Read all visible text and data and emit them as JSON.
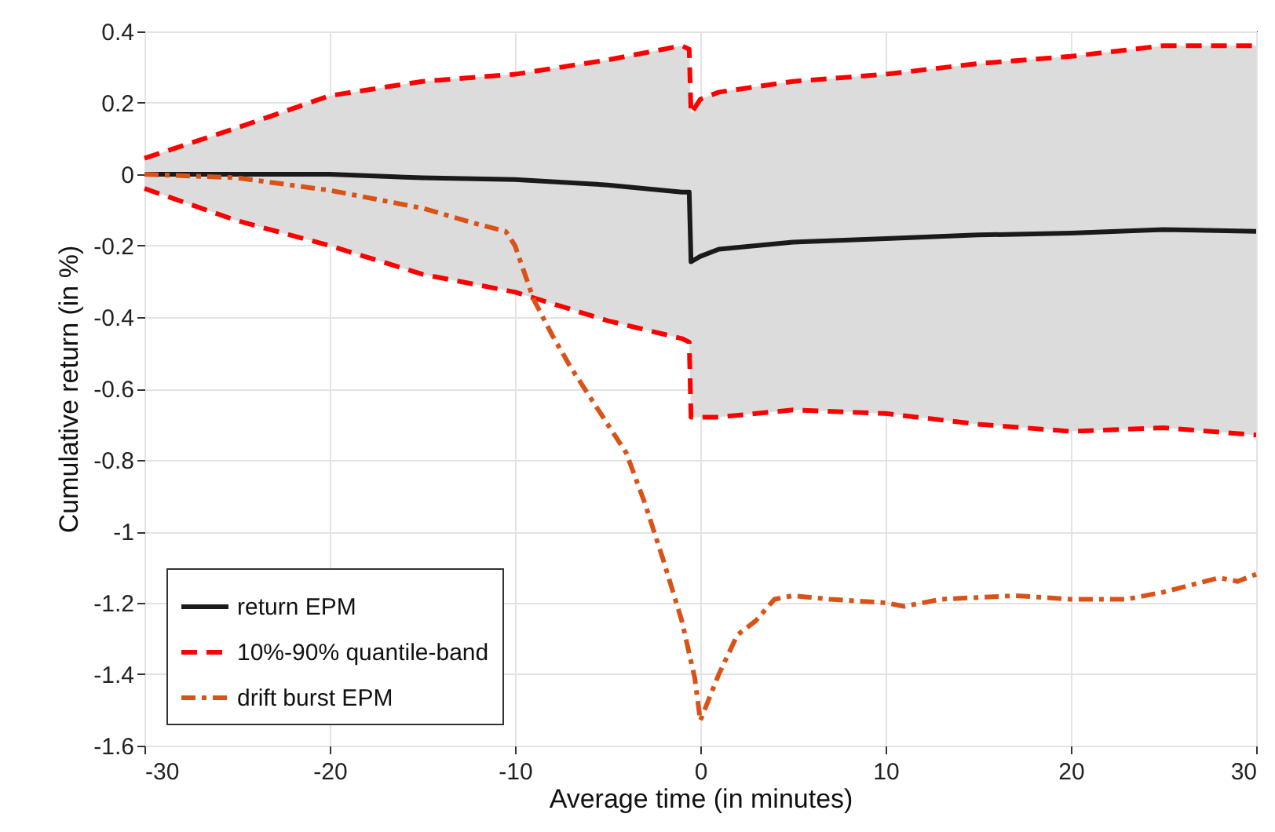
{
  "chart_data": {
    "type": "line",
    "xlabel": "Average time (in minutes)",
    "ylabel": "Cumulative return (in %)",
    "xlim": [
      -30,
      30
    ],
    "xticks": [
      -30,
      -20,
      -10,
      0,
      10,
      20,
      30
    ],
    "ylim": [
      -1.6,
      0.4
    ],
    "yticks": [
      -1.6,
      -1.4,
      -1.2,
      -1,
      -0.8,
      -0.6,
      -0.4,
      -0.2,
      0,
      0.2,
      0.4
    ],
    "grid": true,
    "legend": "bottom left",
    "series": [
      {
        "name": "return EPM",
        "color": "#1a1a1a",
        "line_style": "solid",
        "x": [
          -30,
          -25,
          -20,
          -15,
          -10,
          -5,
          -1,
          -0.6,
          -0.5,
          0,
          1,
          5,
          10,
          15,
          20,
          25,
          30
        ],
        "values": [
          0,
          0,
          0,
          -0.01,
          -0.015,
          -0.03,
          -0.05,
          -0.05,
          -0.245,
          -0.23,
          -0.21,
          -0.19,
          -0.18,
          -0.17,
          -0.165,
          -0.155,
          -0.16
        ],
        "lower": [
          -0.04,
          -0.13,
          -0.2,
          -0.28,
          -0.33,
          -0.41,
          -0.46,
          -0.47,
          -0.68,
          -0.68,
          -0.68,
          -0.66,
          -0.67,
          -0.7,
          -0.72,
          -0.71,
          -0.73
        ],
        "upper": [
          0.045,
          0.13,
          0.22,
          0.26,
          0.28,
          0.32,
          0.36,
          0.35,
          0.17,
          0.21,
          0.23,
          0.26,
          0.28,
          0.31,
          0.33,
          0.36,
          0.36
        ]
      },
      {
        "name": "10%-90% quantile-band",
        "color": "#ff0000",
        "line_style": "dashed",
        "x": [
          -30,
          -25,
          -20,
          -15,
          -10,
          -5,
          -1,
          -0.6,
          -0.5,
          0,
          1,
          5,
          10,
          15,
          20,
          25,
          30
        ],
        "values": [
          0.045,
          0.13,
          0.22,
          0.26,
          0.28,
          0.32,
          0.36,
          0.35,
          0.17,
          0.21,
          0.23,
          0.26,
          0.28,
          0.31,
          0.33,
          0.36,
          0.36
        ]
      },
      {
        "color": "#ff0000",
        "line_style": "dashed",
        "x": [
          -30,
          -25,
          -20,
          -15,
          -10,
          -5,
          -1,
          -0.6,
          -0.5,
          0,
          1,
          5,
          10,
          15,
          20,
          25,
          30
        ],
        "values": [
          -0.04,
          -0.13,
          -0.2,
          -0.28,
          -0.33,
          -0.41,
          -0.46,
          -0.47,
          -0.68,
          -0.68,
          -0.68,
          -0.66,
          -0.67,
          -0.7,
          -0.72,
          -0.71,
          -0.73
        ]
      },
      {
        "name": "drift burst EPM",
        "color": "#d95319",
        "line_style": "dashdot",
        "x": [
          -30,
          -25,
          -20,
          -15,
          -12,
          -10.5,
          -10,
          -9,
          -8,
          -7,
          -5,
          -4,
          -3,
          -2,
          -1,
          -0.3,
          0,
          1,
          2,
          3,
          4,
          5,
          7,
          10,
          11,
          13,
          17,
          20,
          23,
          25,
          28,
          29,
          30
        ],
        "values": [
          0,
          -0.01,
          -0.045,
          -0.095,
          -0.14,
          -0.16,
          -0.2,
          -0.35,
          -0.45,
          -0.54,
          -0.7,
          -0.78,
          -0.92,
          -1.08,
          -1.25,
          -1.41,
          -1.53,
          -1.4,
          -1.29,
          -1.25,
          -1.19,
          -1.18,
          -1.19,
          -1.2,
          -1.21,
          -1.19,
          -1.18,
          -1.19,
          -1.19,
          -1.17,
          -1.13,
          -1.14,
          -1.12
        ]
      }
    ]
  }
}
